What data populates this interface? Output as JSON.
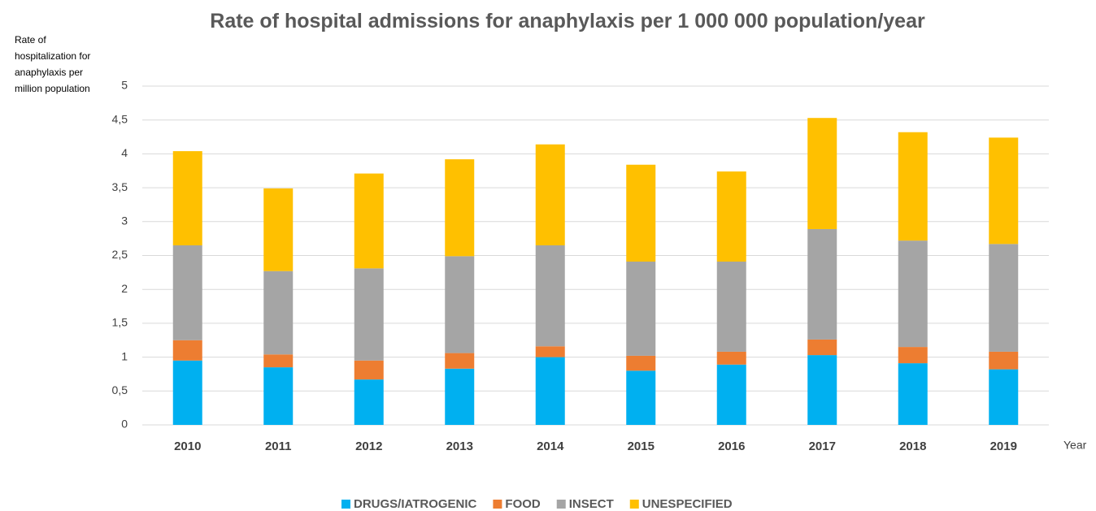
{
  "chart_data": {
    "type": "stacked_bar",
    "title": "Rate of hospital admissions for anaphylaxis per 1 000 000 population/year",
    "y_label": [
      "Rate of",
      "hospitalization for",
      "anaphylaxis per",
      "million population"
    ],
    "x_label": "Year",
    "categories": [
      "2010",
      "2011",
      "2012",
      "2013",
      "2014",
      "2015",
      "2016",
      "2017",
      "2018",
      "2019"
    ],
    "series": [
      {
        "name": "DRUGS/IATROGENIC",
        "color": "#00b0f0",
        "values": [
          0.95,
          0.85,
          0.67,
          0.83,
          1.0,
          0.8,
          0.89,
          1.03,
          0.91,
          0.82
        ]
      },
      {
        "name": "FOOD",
        "color": "#ed7d31",
        "values": [
          0.3,
          0.19,
          0.28,
          0.23,
          0.16,
          0.22,
          0.19,
          0.23,
          0.24,
          0.26
        ]
      },
      {
        "name": "INSECT",
        "color": "#a5a5a5",
        "values": [
          1.4,
          1.23,
          1.36,
          1.43,
          1.49,
          1.39,
          1.33,
          1.63,
          1.57,
          1.59
        ]
      },
      {
        "name": "UNESPECIFIED",
        "color": "#ffc000",
        "values": [
          1.39,
          1.22,
          1.4,
          1.43,
          1.49,
          1.43,
          1.33,
          1.64,
          1.6,
          1.57
        ]
      }
    ],
    "ylim": [
      0,
      5
    ],
    "yticks": [
      0,
      {
        "value": 0.5,
        "label": "0,5"
      },
      1,
      {
        "value": 1.5,
        "label": "1,5"
      },
      2,
      {
        "value": 2.5,
        "label": "2,5"
      },
      3,
      {
        "value": 3.5,
        "label": "3,5"
      },
      4,
      {
        "value": 4.5,
        "label": "4,5"
      },
      5
    ],
    "grid": true,
    "legend": "bottom"
  }
}
